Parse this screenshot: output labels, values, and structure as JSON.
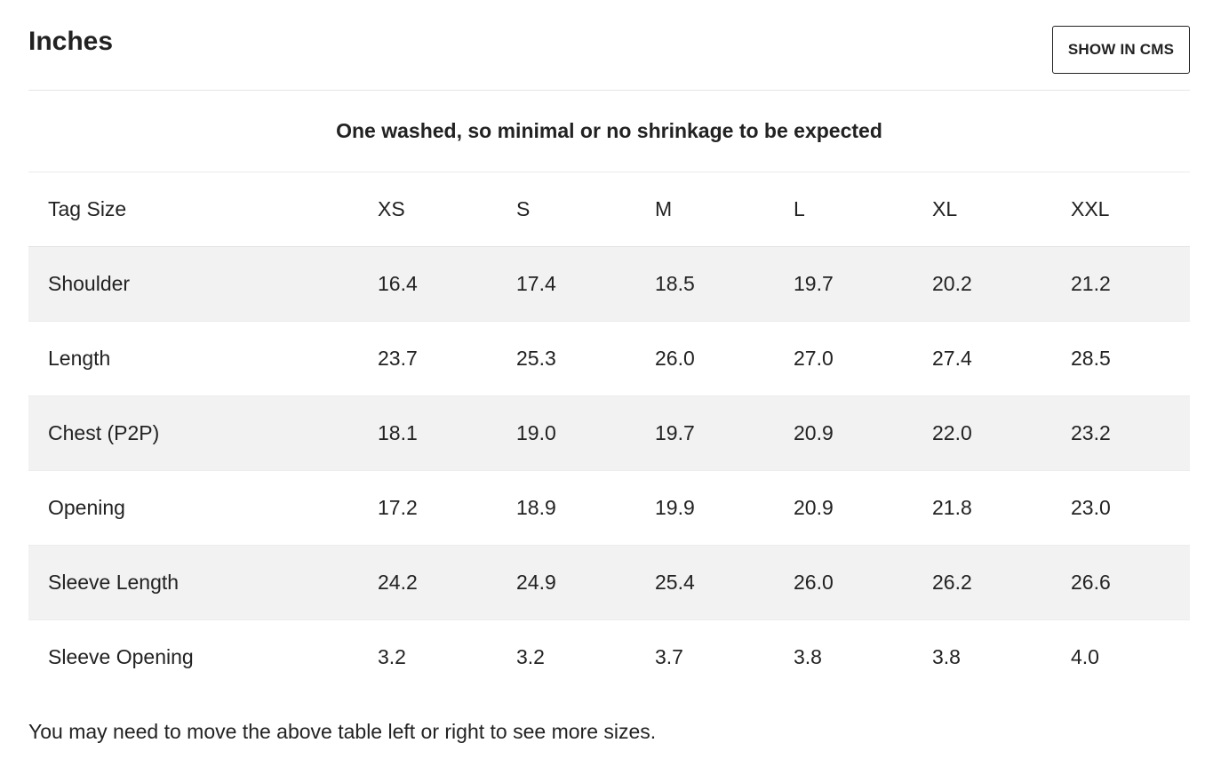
{
  "header": {
    "title": "Inches",
    "cms_button_label": "SHOW IN CMS"
  },
  "note": "One washed, so minimal or no shrinkage to be expected",
  "table": {
    "header_label": "Tag Size",
    "sizes": [
      "XS",
      "S",
      "M",
      "L",
      "XL",
      "XXL"
    ],
    "rows": [
      {
        "label": "Shoulder",
        "values": [
          "16.4",
          "17.4",
          "18.5",
          "19.7",
          "20.2",
          "21.2"
        ]
      },
      {
        "label": "Length",
        "values": [
          "23.7",
          "25.3",
          "26.0",
          "27.0",
          "27.4",
          "28.5"
        ]
      },
      {
        "label": "Chest (P2P)",
        "values": [
          "18.1",
          "19.0",
          "19.7",
          "20.9",
          "22.0",
          "23.2"
        ]
      },
      {
        "label": "Opening",
        "values": [
          "17.2",
          "18.9",
          "19.9",
          "20.9",
          "21.8",
          "23.0"
        ]
      },
      {
        "label": "Sleeve Length",
        "values": [
          "24.2",
          "24.9",
          "25.4",
          "26.0",
          "26.2",
          "26.6"
        ]
      },
      {
        "label": "Sleeve Opening",
        "values": [
          "3.2",
          "3.2",
          "3.7",
          "3.8",
          "3.8",
          "4.0"
        ]
      }
    ]
  },
  "footer_hint": "You may need to move the above table left or right to see more sizes."
}
